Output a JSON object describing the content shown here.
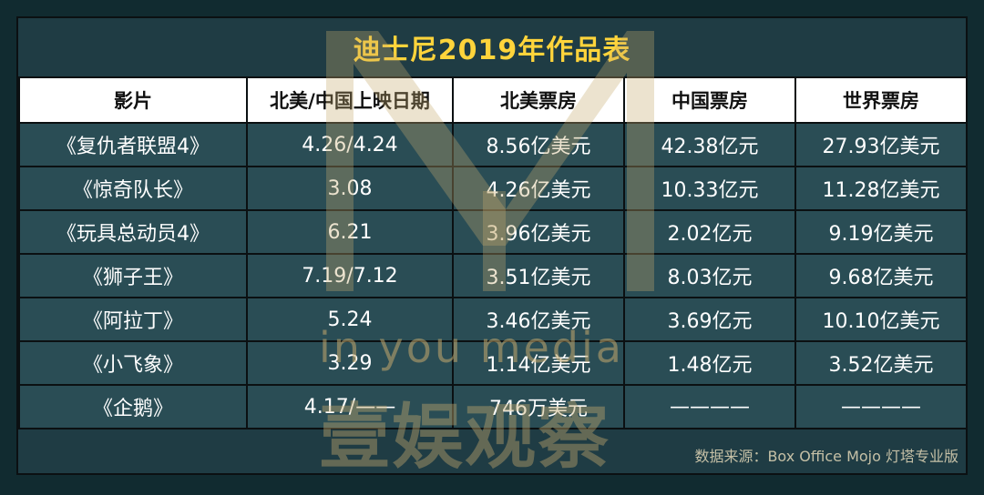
{
  "title": "迪士尼2019年作品表",
  "headers": [
    "影片",
    "北美/中国上映日期",
    "北美票房",
    "中国票房",
    "世界票房"
  ],
  "rows": [
    [
      "《复仇者联盟4》",
      "4.26/4.24",
      "8.56亿美元",
      "42.38亿元",
      "27.93亿美元"
    ],
    [
      "《惊奇队长》",
      "3.08",
      "4.26亿美元",
      "10.33亿元",
      "11.28亿美元"
    ],
    [
      "《玩具总动员4》",
      "6.21",
      "3.96亿美元",
      "2.02亿元",
      "9.19亿美元"
    ],
    [
      "《狮子王》",
      "7.19/7.12",
      "3.51亿美元",
      "8.03亿元",
      "9.68亿美元"
    ],
    [
      "《阿拉丁》",
      "5.24",
      "3.46亿美元",
      "3.69亿元",
      "10.10亿美元"
    ],
    [
      "《小飞象》",
      "3.29",
      "1.14亿美元",
      "1.48亿元",
      "3.52亿美元"
    ],
    [
      "《企鹅》",
      "4.17/——",
      "746万美元",
      "————",
      "————"
    ]
  ],
  "watermark": {
    "latin": "in you media",
    "chinese": "壹娱观察"
  },
  "source": "数据来源：Box Office Mojo 灯塔专业版",
  "colors": {
    "background": "#1f3c44",
    "cell": "#2a4d55",
    "header": "#ffffff",
    "title": "#ffd43b",
    "watermark": "#c4aa6e"
  }
}
